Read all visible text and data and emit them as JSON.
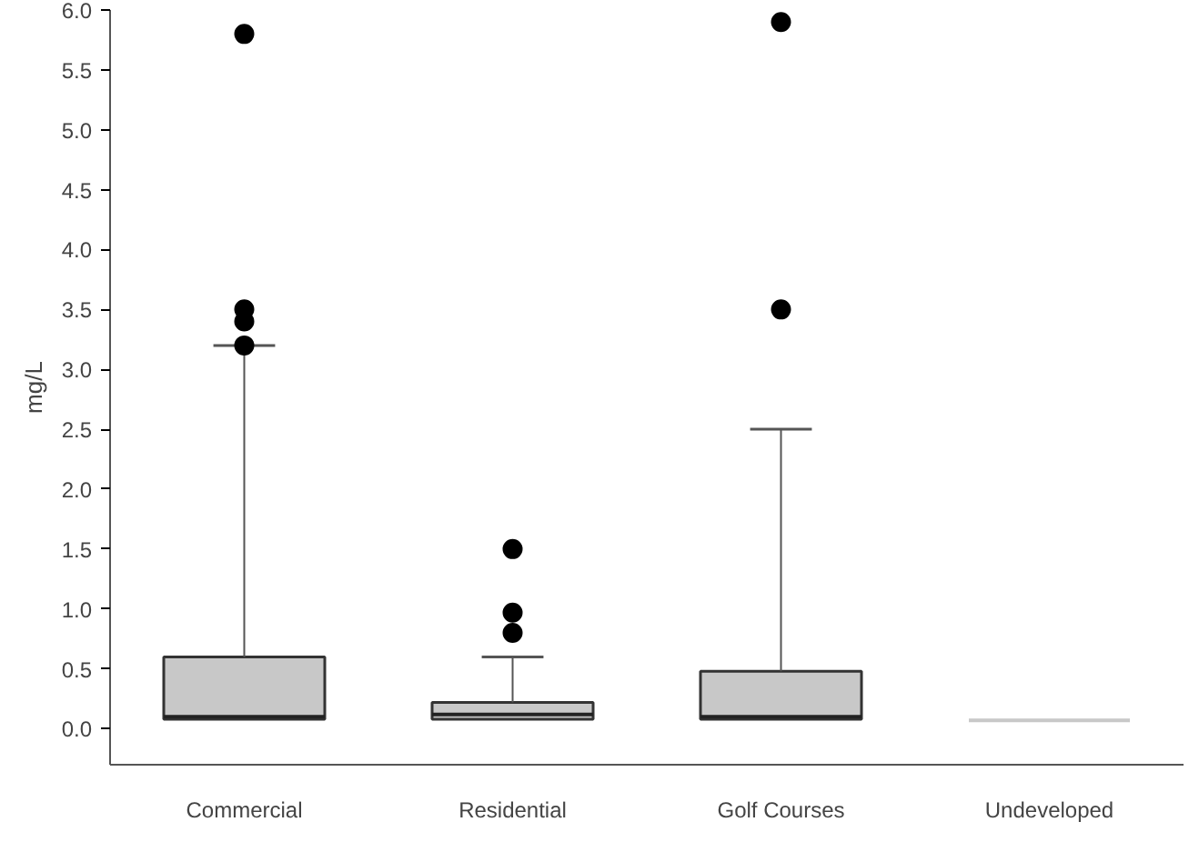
{
  "chart_data": {
    "type": "box",
    "ylabel": "mg/L",
    "categories": [
      "Commercial",
      "Residential",
      "Golf Courses",
      "Undeveloped"
    ],
    "boxes": [
      {
        "low": 0.08,
        "q1": 0.08,
        "median": 0.1,
        "q3": 0.6,
        "high": 3.2,
        "outliers": [
          3.2,
          3.4,
          3.5,
          5.8
        ]
      },
      {
        "low": 0.08,
        "q1": 0.08,
        "median": 0.12,
        "q3": 0.22,
        "high": 0.6,
        "outliers": [
          0.8,
          0.97,
          1.5
        ]
      },
      {
        "low": 0.08,
        "q1": 0.08,
        "median": 0.1,
        "q3": 0.48,
        "high": 2.5,
        "outliers": [
          3.5,
          5.9
        ]
      },
      {
        "low": 0.07,
        "q1": 0.07,
        "median": 0.07,
        "q3": 0.07,
        "high": 0.07
      }
    ],
    "color": "#c8c8c8",
    "ylim": [
      -0.3,
      6.0
    ],
    "yticks": [
      {
        "value": 0,
        "label": "0.0"
      },
      0.5,
      {
        "value": 1,
        "label": "1.0"
      },
      1.5,
      {
        "value": 2,
        "label": "2.0"
      },
      2.5,
      {
        "value": 3,
        "label": "3.0"
      },
      3.5,
      {
        "value": 4,
        "label": "4.0"
      },
      4.5,
      {
        "value": 5,
        "label": "5.0"
      },
      5.5,
      {
        "value": 6,
        "label": "6.0"
      }
    ],
    "grid": false,
    "marker": "circle"
  }
}
